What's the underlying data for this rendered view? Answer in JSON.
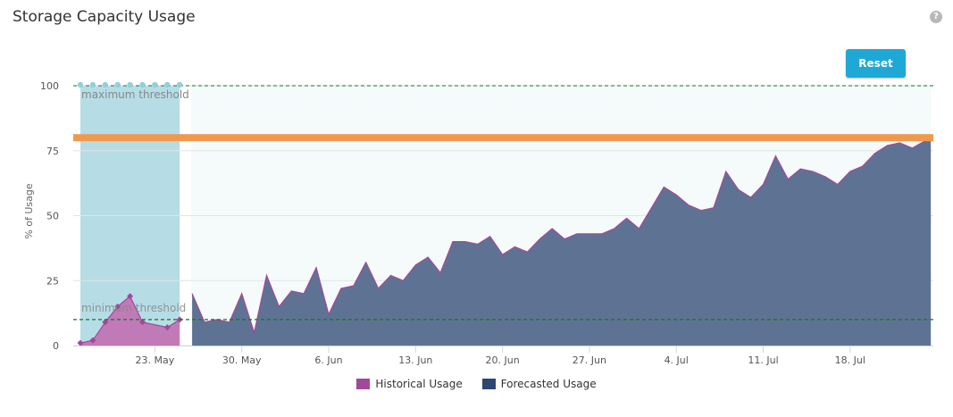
{
  "header": {
    "title": "Storage Capacity Usage",
    "help_icon": "question-circle-icon",
    "help_glyph": "?",
    "reset_label": "Reset"
  },
  "colors": {
    "historical": "#a2489b",
    "historical_fill": "#c07ab8",
    "forecast": "#2c4773",
    "forecast_fill": "#5e7393",
    "threshold_line": "#0f7a1e",
    "critical": "#f0994e",
    "selection_band": "#b6dde6",
    "selection_handle": "#94cfdc",
    "forecast_band": "#f5fafb",
    "grid": "#e4e4e4"
  },
  "chart_data": {
    "type": "area",
    "ylabel": "% of Usage",
    "ylim": [
      0,
      100
    ],
    "yticks": [
      0,
      25,
      50,
      75,
      100
    ],
    "x_start": "2025-05-17",
    "x_end": "2025-07-25",
    "xtick_labels": [
      "23. May",
      "30. May",
      "6. Jun",
      "13. Jun",
      "20. Jun",
      "27. Jun",
      "4. Jul",
      "11. Jul",
      "18. Jul"
    ],
    "xtick_days": [
      6,
      13,
      20,
      27,
      34,
      41,
      48,
      55,
      62
    ],
    "thresholds": {
      "maximum": {
        "label": "maximum threshold",
        "value": 100
      },
      "minimum": {
        "label": "minimum threshold",
        "value": 10
      },
      "critical": {
        "value": 80
      }
    },
    "selection_range": {
      "from_day": 0,
      "to_day": 8
    },
    "forecast_band": {
      "from_day": 9,
      "to_day": 68.5
    },
    "series": [
      {
        "name": "Historical Usage",
        "days": [
          0,
          1,
          2,
          3,
          4,
          5,
          7,
          8
        ],
        "values": [
          1,
          2,
          9,
          15,
          19,
          9,
          7,
          10
        ]
      },
      {
        "name": "Forecasted Usage",
        "days": [
          9,
          10,
          11,
          12,
          13,
          14,
          15,
          16,
          17,
          18,
          19,
          20,
          21,
          22,
          23,
          24,
          25,
          26,
          27,
          28,
          29,
          30,
          31,
          32,
          33,
          34,
          35,
          36,
          37,
          38,
          39,
          40,
          41,
          42,
          43,
          44,
          45,
          46,
          47,
          48,
          49,
          50,
          51,
          52,
          53,
          54,
          55,
          56,
          57,
          58,
          59,
          60,
          61,
          62,
          63,
          64,
          65,
          66,
          67,
          68.5
        ],
        "values": [
          20,
          9,
          10,
          9,
          20,
          5,
          27,
          15,
          21,
          20,
          30,
          12,
          22,
          23,
          32,
          22,
          27,
          25,
          31,
          34,
          28,
          40,
          40,
          39,
          42,
          35,
          38,
          36,
          41,
          45,
          41,
          43,
          43,
          43,
          45,
          49,
          45,
          53,
          61,
          58,
          54,
          52,
          53,
          67,
          60,
          57,
          62,
          73,
          64,
          68,
          67,
          65,
          62,
          67,
          69,
          74,
          77,
          78,
          76,
          80
        ]
      }
    ]
  }
}
